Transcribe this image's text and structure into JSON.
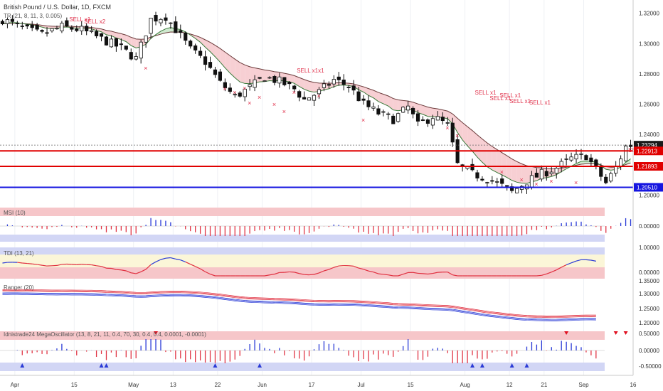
{
  "header": {
    "symbol": "British Pound / U.S. Dollar, 1D, FXCM",
    "indicator_label": "TR (21, 8, 11, 3, 0.005)"
  },
  "colors": {
    "background": "#ffffff",
    "grid": "#eef0f4",
    "candle": "#111111",
    "sell_text": "#e0304a",
    "sell_x": "#e0304a",
    "sr_red": "#e00000",
    "sr_blue": "#1515e0",
    "cloud_bear": "#f7cfd3",
    "cloud_bull": "#cfe9cf",
    "band_top": "#f6c6c9",
    "band_bottom": "#d2d6f5",
    "band_mid": "#fbf6d8",
    "hist_pos": "#2a3bd6",
    "hist_neg": "#e03545",
    "tdi_bull": "#e03040",
    "tdi_bear": "#2a3bd6",
    "ranger_red": "#e03040",
    "ranger_blue": "#2a3bd6",
    "tri_red": "#e01020",
    "tri_blue": "#2a3bd6"
  },
  "price_axis": {
    "ticks": [
      "1.32000",
      "1.30000",
      "1.28000",
      "1.26000",
      "1.24000",
      "1.20000"
    ],
    "labels": [
      {
        "text": "1.23294",
        "style": "dark"
      },
      {
        "text": "1.22913",
        "style": "red"
      },
      {
        "text": "1.21893",
        "style": "red"
      },
      {
        "text": "1.20510",
        "style": "blue"
      }
    ]
  },
  "time_axis": {
    "labels": [
      "Apr",
      "15",
      "May",
      "13",
      "22",
      "Jun",
      "17",
      "Jul",
      "15",
      "Aug",
      "12",
      "21",
      "Sep",
      "16"
    ]
  },
  "chart_data": [
    {
      "type": "candlestick",
      "title": "British Pound / U.S. Dollar, 1D, FXCM",
      "ylim": [
        1.195,
        1.325
      ],
      "levels": [
        {
          "value": 1.23294,
          "color": "dark"
        },
        {
          "value": 1.22913,
          "color": "red"
        },
        {
          "value": 1.21893,
          "color": "red"
        },
        {
          "value": 1.2051,
          "color": "blue"
        }
      ],
      "sell_signals": [
        {
          "text": "SELL x1"
        },
        {
          "text": "SELL x2"
        },
        {
          "text": "SELL x1x1"
        },
        {
          "text": "SELL x1"
        },
        {
          "text": "SELL x1"
        },
        {
          "text": "SELL x1"
        },
        {
          "text": "SELL x1"
        },
        {
          "text": "SELL x1"
        },
        {
          "text": "SELL x1"
        }
      ]
    },
    {
      "type": "bar",
      "title": "MSI (10)",
      "ticks": [
        "0.00000"
      ]
    },
    {
      "type": "line",
      "title": "TDI (13, 21)",
      "ticks": [
        "1.00000",
        "0.00000"
      ]
    },
    {
      "type": "line",
      "title": "Ranger (20)",
      "ticks": [
        "1.35000",
        "1.30000",
        "1.25000",
        "1.20000"
      ]
    },
    {
      "type": "bar",
      "title": "Idnistrade24 MegaOscillator (13, 8, 21, 11, 0.4, 70, 30, 0.4, 0.4, 0.0001, -0.0001)",
      "ticks": [
        "0.50000",
        "0.00000",
        "-0.50000"
      ]
    }
  ]
}
